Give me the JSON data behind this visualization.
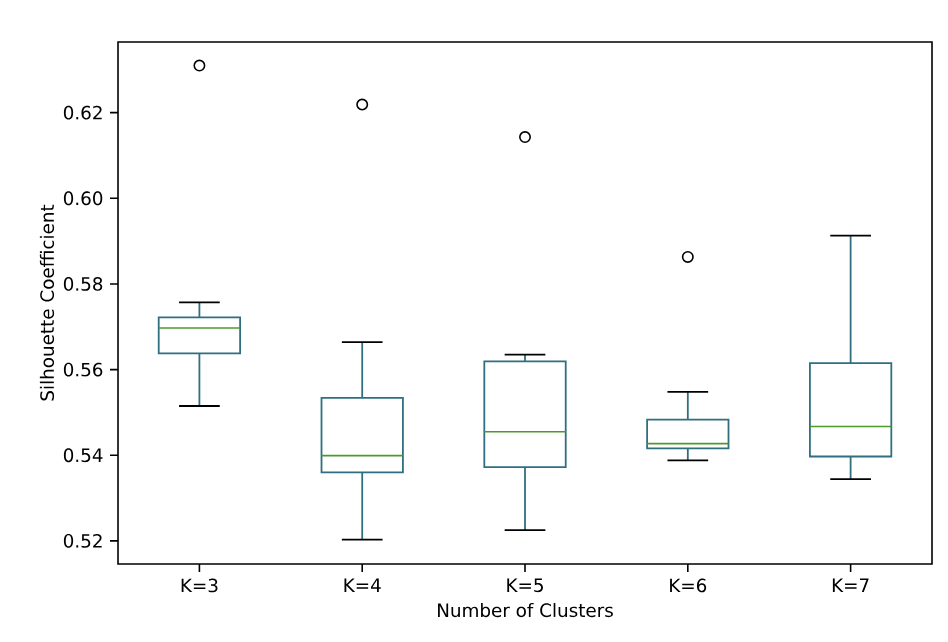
{
  "chart_data": {
    "type": "box",
    "xlabel": "Number of Clusters",
    "ylabel": "Silhouette Coefficient",
    "categories": [
      "K=3",
      "K=4",
      "K=5",
      "K=6",
      "K=7"
    ],
    "color": "#2f6f80",
    "boxes": [
      {
        "low": 0.5515,
        "q1": 0.5638,
        "median": 0.5697,
        "q3": 0.5722,
        "high": 0.5757,
        "outliers": [
          0.631
        ]
      },
      {
        "low": 0.5203,
        "q1": 0.536,
        "median": 0.5399,
        "q3": 0.5534,
        "high": 0.5664,
        "outliers": [
          0.6219
        ]
      },
      {
        "low": 0.5225,
        "q1": 0.5372,
        "median": 0.5455,
        "q3": 0.5619,
        "high": 0.5635,
        "outliers": [
          0.6143
        ]
      },
      {
        "low": 0.5388,
        "q1": 0.5416,
        "median": 0.5427,
        "q3": 0.5483,
        "high": 0.5548,
        "outliers": [
          0.5863
        ]
      },
      {
        "low": 0.5344,
        "q1": 0.5397,
        "median": 0.5467,
        "q3": 0.5615,
        "high": 0.5913
      }
    ],
    "ylim": [
      0.5146,
      0.6365
    ],
    "yticks": [
      0.52,
      0.54,
      0.56,
      0.58,
      {
        "value": 0.6,
        "label": "0.60"
      },
      0.62
    ]
  }
}
